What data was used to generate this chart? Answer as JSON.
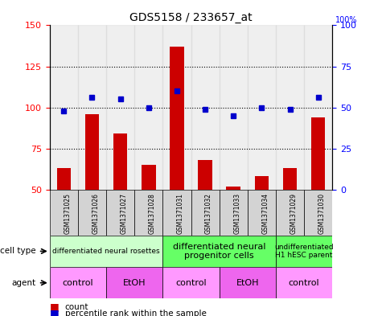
{
  "title": "GDS5158 / 233657_at",
  "samples": [
    "GSM1371025",
    "GSM1371026",
    "GSM1371027",
    "GSM1371028",
    "GSM1371031",
    "GSM1371032",
    "GSM1371033",
    "GSM1371034",
    "GSM1371029",
    "GSM1371030"
  ],
  "counts": [
    63,
    96,
    84,
    65,
    137,
    68,
    52,
    58,
    63,
    94
  ],
  "percentiles": [
    48,
    56,
    55,
    50,
    60,
    49,
    45,
    50,
    49,
    56
  ],
  "ylim_left": [
    50,
    150
  ],
  "ylim_right": [
    0,
    100
  ],
  "yticks_left": [
    50,
    75,
    100,
    125,
    150
  ],
  "yticks_right": [
    0,
    25,
    50,
    75,
    100
  ],
  "bar_color": "#cc0000",
  "dot_color": "#0000cc",
  "cell_type_groups": [
    {
      "label": "differentiated neural rosettes",
      "start": 0,
      "end": 4,
      "color": "#ccffcc",
      "fontsize": 6.5
    },
    {
      "label": "differentiated neural\nprogenitor cells",
      "start": 4,
      "end": 8,
      "color": "#66ff66",
      "fontsize": 8
    },
    {
      "label": "undifferentiated\nH1 hESC parent",
      "start": 8,
      "end": 10,
      "color": "#66ff66",
      "fontsize": 6.5
    }
  ],
  "agent_groups": [
    {
      "label": "control",
      "start": 0,
      "end": 2,
      "color": "#ff99ff"
    },
    {
      "label": "EtOH",
      "start": 2,
      "end": 4,
      "color": "#ee66ee"
    },
    {
      "label": "control",
      "start": 4,
      "end": 6,
      "color": "#ff99ff"
    },
    {
      "label": "EtOH",
      "start": 6,
      "end": 8,
      "color": "#ee66ee"
    },
    {
      "label": "control",
      "start": 8,
      "end": 10,
      "color": "#ff99ff"
    }
  ],
  "legend_count_color": "#cc0000",
  "legend_pct_color": "#0000cc",
  "sample_bg_color": "#d3d3d3",
  "dotted_lines": [
    75,
    100,
    125
  ]
}
